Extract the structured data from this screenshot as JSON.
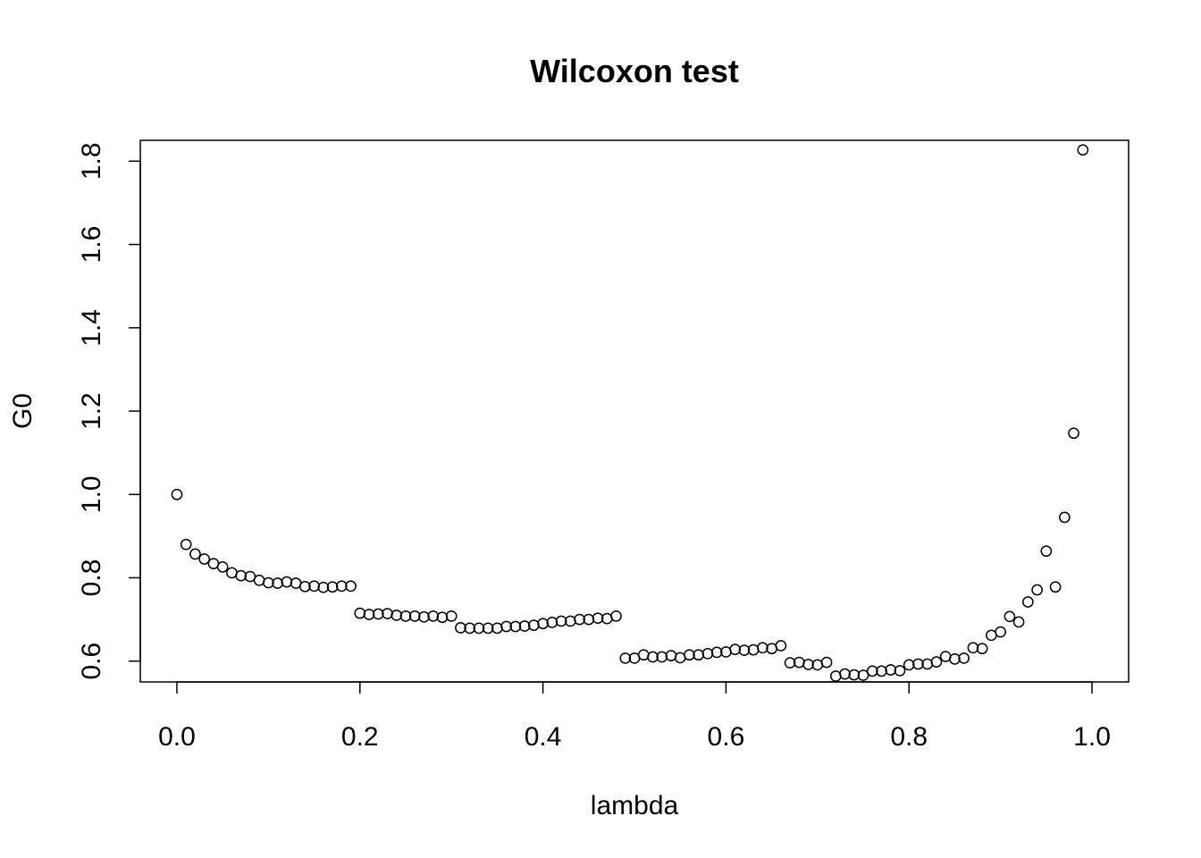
{
  "chart_data": {
    "type": "scatter",
    "title": "Wilcoxon test",
    "xlabel": "lambda",
    "ylabel": "G0",
    "xlim": [
      -0.04,
      1.04
    ],
    "ylim": [
      0.55,
      1.85
    ],
    "xticks": [
      0.0,
      0.2,
      0.4,
      0.6,
      0.8,
      1.0
    ],
    "xtick_labels": [
      "0.0",
      "0.2",
      "0.4",
      "0.6",
      "0.8",
      "1.0"
    ],
    "yticks": [
      0.6,
      0.8,
      1.0,
      1.2,
      1.4,
      1.6,
      1.8
    ],
    "ytick_labels": [
      "0.6",
      "0.8",
      "1.0",
      "1.2",
      "1.4",
      "1.6",
      "1.8"
    ],
    "grid": false,
    "marker": "open-circle",
    "points": [
      [
        0.0,
        1.0
      ],
      [
        0.01,
        0.88
      ],
      [
        0.02,
        0.857
      ],
      [
        0.03,
        0.845
      ],
      [
        0.04,
        0.834
      ],
      [
        0.05,
        0.826
      ],
      [
        0.06,
        0.812
      ],
      [
        0.07,
        0.805
      ],
      [
        0.08,
        0.803
      ],
      [
        0.09,
        0.794
      ],
      [
        0.1,
        0.788
      ],
      [
        0.11,
        0.787
      ],
      [
        0.12,
        0.79
      ],
      [
        0.13,
        0.787
      ],
      [
        0.14,
        0.779
      ],
      [
        0.15,
        0.78
      ],
      [
        0.16,
        0.777
      ],
      [
        0.17,
        0.778
      ],
      [
        0.18,
        0.78
      ],
      [
        0.19,
        0.78
      ],
      [
        0.2,
        0.715
      ],
      [
        0.21,
        0.712
      ],
      [
        0.22,
        0.713
      ],
      [
        0.23,
        0.714
      ],
      [
        0.24,
        0.71
      ],
      [
        0.25,
        0.708
      ],
      [
        0.26,
        0.708
      ],
      [
        0.27,
        0.706
      ],
      [
        0.28,
        0.708
      ],
      [
        0.29,
        0.705
      ],
      [
        0.3,
        0.708
      ],
      [
        0.31,
        0.68
      ],
      [
        0.32,
        0.679
      ],
      [
        0.33,
        0.679
      ],
      [
        0.34,
        0.679
      ],
      [
        0.35,
        0.679
      ],
      [
        0.36,
        0.683
      ],
      [
        0.37,
        0.683
      ],
      [
        0.38,
        0.684
      ],
      [
        0.39,
        0.686
      ],
      [
        0.4,
        0.69
      ],
      [
        0.41,
        0.693
      ],
      [
        0.42,
        0.696
      ],
      [
        0.43,
        0.696
      ],
      [
        0.44,
        0.7
      ],
      [
        0.45,
        0.7
      ],
      [
        0.46,
        0.703
      ],
      [
        0.47,
        0.702
      ],
      [
        0.48,
        0.708
      ],
      [
        0.49,
        0.607
      ],
      [
        0.5,
        0.607
      ],
      [
        0.51,
        0.615
      ],
      [
        0.52,
        0.61
      ],
      [
        0.53,
        0.61
      ],
      [
        0.54,
        0.613
      ],
      [
        0.55,
        0.608
      ],
      [
        0.56,
        0.615
      ],
      [
        0.57,
        0.615
      ],
      [
        0.58,
        0.618
      ],
      [
        0.59,
        0.621
      ],
      [
        0.6,
        0.622
      ],
      [
        0.61,
        0.628
      ],
      [
        0.62,
        0.626
      ],
      [
        0.63,
        0.627
      ],
      [
        0.64,
        0.632
      ],
      [
        0.65,
        0.63
      ],
      [
        0.66,
        0.637
      ],
      [
        0.67,
        0.596
      ],
      [
        0.68,
        0.597
      ],
      [
        0.69,
        0.592
      ],
      [
        0.7,
        0.591
      ],
      [
        0.71,
        0.597
      ],
      [
        0.72,
        0.564
      ],
      [
        0.73,
        0.569
      ],
      [
        0.74,
        0.567
      ],
      [
        0.75,
        0.566
      ],
      [
        0.76,
        0.576
      ],
      [
        0.77,
        0.576
      ],
      [
        0.78,
        0.579
      ],
      [
        0.79,
        0.577
      ],
      [
        0.8,
        0.591
      ],
      [
        0.81,
        0.593
      ],
      [
        0.82,
        0.593
      ],
      [
        0.83,
        0.598
      ],
      [
        0.84,
        0.611
      ],
      [
        0.85,
        0.605
      ],
      [
        0.86,
        0.607
      ],
      [
        0.87,
        0.632
      ],
      [
        0.88,
        0.63
      ],
      [
        0.89,
        0.662
      ],
      [
        0.9,
        0.67
      ],
      [
        0.91,
        0.707
      ],
      [
        0.92,
        0.694
      ],
      [
        0.93,
        0.742
      ],
      [
        0.94,
        0.771
      ],
      [
        0.95,
        0.864
      ],
      [
        0.96,
        0.778
      ],
      [
        0.97,
        0.945
      ],
      [
        0.98,
        1.147
      ],
      [
        0.99,
        1.827
      ]
    ]
  }
}
